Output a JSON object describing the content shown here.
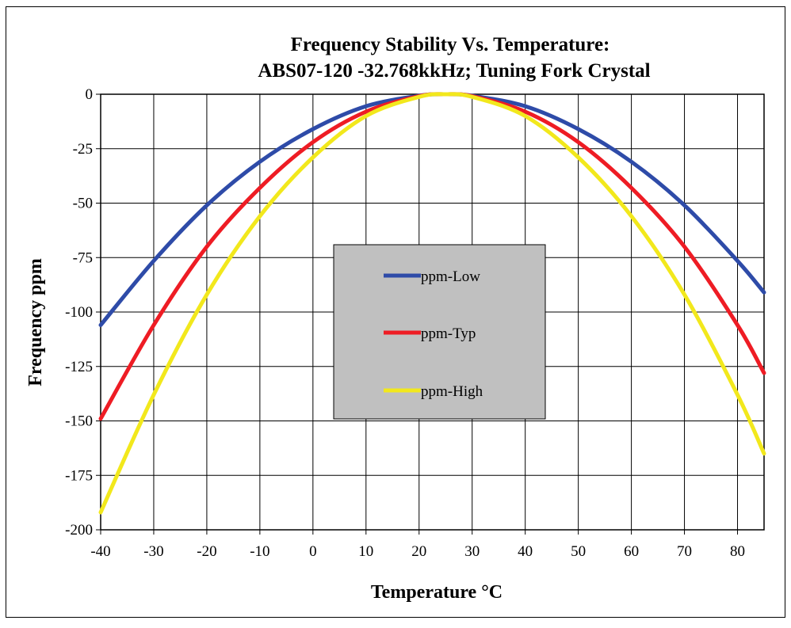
{
  "chart_data": {
    "type": "line",
    "title": [
      "Frequency Stability Vs. Temperature:",
      "ABS07-120 -32.768kkHz; Tuning Fork Crystal"
    ],
    "xlabel": "Temperature °C",
    "ylabel": "Frequency ppm",
    "xlim": [
      -40,
      85
    ],
    "ylim": [
      -200,
      0
    ],
    "xticks": [
      -40,
      -30,
      -20,
      -10,
      0,
      10,
      20,
      30,
      40,
      50,
      60,
      70,
      80
    ],
    "yticks": [
      0,
      -25,
      -50,
      -75,
      -100,
      -125,
      -150,
      -175,
      -200
    ],
    "grid": true,
    "legend_position": "center",
    "series": [
      {
        "name": "ppm-Low",
        "color": "#2e4ba8",
        "x": [
          -40,
          -30,
          -20,
          -10,
          0,
          10,
          20,
          25,
          30,
          40,
          50,
          60,
          70,
          80,
          85
        ],
        "y": [
          -106,
          -76.5,
          -51,
          -31,
          -16,
          -5.5,
          -0.7,
          0,
          -0.7,
          -5.5,
          -16,
          -31,
          -51,
          -76.5,
          -91
        ]
      },
      {
        "name": "ppm-Typ",
        "color": "#ee1c24",
        "x": [
          -40,
          -30,
          -20,
          -10,
          0,
          10,
          20,
          25,
          30,
          40,
          50,
          60,
          70,
          80,
          85
        ],
        "y": [
          -149,
          -106,
          -70,
          -43,
          -22,
          -8,
          -0.9,
          0,
          -0.9,
          -8,
          -22,
          -43,
          -70,
          -106,
          -128
        ]
      },
      {
        "name": "ppm-High",
        "color": "#f2e81c",
        "x": [
          -40,
          -30,
          -20,
          -10,
          0,
          10,
          20,
          25,
          30,
          40,
          50,
          60,
          70,
          80,
          85
        ],
        "y": [
          -192,
          -138,
          -92,
          -56,
          -29,
          -10,
          -1.2,
          0,
          -1.2,
          -10,
          -29,
          -56,
          -92,
          -138,
          -165
        ]
      }
    ]
  }
}
